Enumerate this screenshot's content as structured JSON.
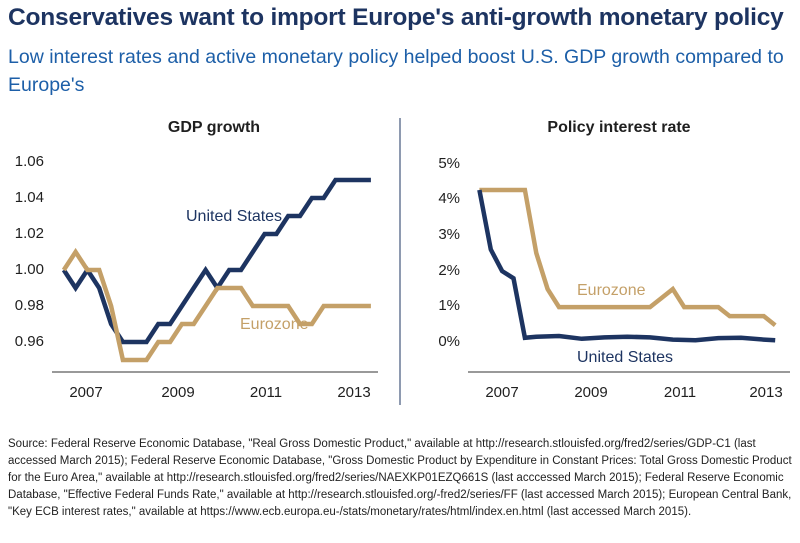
{
  "title": "Conservatives want to import Europe's anti-growth monetary policy",
  "subtitle": "Low interest rates and active monetary policy helped boost U.S. GDP growth compared to Europe's",
  "colors": {
    "us": "#1d3461",
    "eurozone": "#c4a068",
    "title": "#1d3461",
    "subtitle": "#1d5fa8"
  },
  "chart_data": [
    {
      "type": "line",
      "title": "GDP growth",
      "xlim": [
        2006.5,
        2013.4
      ],
      "ylim": [
        0.95,
        1.06
      ],
      "x_ticks": [
        2007,
        2009,
        2011,
        2013
      ],
      "x_tick_labels": [
        "2007",
        "2009",
        "2011",
        "2013"
      ],
      "y_ticks": [
        0.96,
        0.98,
        1.0,
        1.02,
        1.04,
        1.06
      ],
      "y_tick_labels": [
        "0.96",
        "0.98",
        "1.00",
        "1.02",
        "1.04",
        "1.06"
      ],
      "grid": false,
      "series": [
        {
          "name": "United States",
          "color": "#1d3461",
          "x": [
            2006.75,
            2007.0,
            2007.25,
            2007.5,
            2007.75,
            2008.0,
            2008.25,
            2008.5,
            2008.75,
            2009.0,
            2009.25,
            2009.5,
            2009.75,
            2010.0,
            2010.25,
            2010.5,
            2010.75,
            2011.0,
            2011.25,
            2011.5,
            2011.75,
            2012.0,
            2012.25,
            2012.5,
            2012.75,
            2013.0,
            2013.25
          ],
          "values": [
            1.0,
            0.99,
            1.0,
            0.99,
            0.97,
            0.96,
            0.96,
            0.96,
            0.97,
            0.97,
            0.98,
            0.99,
            1.0,
            0.99,
            1.0,
            1.0,
            1.01,
            1.02,
            1.02,
            1.03,
            1.03,
            1.04,
            1.04,
            1.05,
            1.05,
            1.05,
            1.05
          ]
        },
        {
          "name": "Eurozone",
          "color": "#c4a068",
          "x": [
            2006.75,
            2007.0,
            2007.25,
            2007.5,
            2007.75,
            2008.0,
            2008.25,
            2008.5,
            2008.75,
            2009.0,
            2009.25,
            2009.5,
            2009.75,
            2010.0,
            2010.25,
            2010.5,
            2010.75,
            2011.0,
            2011.25,
            2011.5,
            2011.75,
            2012.0,
            2012.25,
            2012.5,
            2012.75,
            2013.0,
            2013.25
          ],
          "values": [
            1.0,
            1.01,
            1.0,
            1.0,
            0.98,
            0.95,
            0.95,
            0.95,
            0.96,
            0.96,
            0.97,
            0.97,
            0.98,
            0.99,
            0.99,
            0.99,
            0.98,
            0.98,
            0.98,
            0.98,
            0.97,
            0.97,
            0.98,
            0.98,
            0.98,
            0.98,
            0.98
          ]
        }
      ],
      "annotations": [
        {
          "text": "United States",
          "series": "United States"
        },
        {
          "text": "Eurozone",
          "series": "Eurozone"
        }
      ]
    },
    {
      "type": "line",
      "title": "Policy interest rate",
      "xlim": [
        2006.5,
        2013.4
      ],
      "ylim": [
        -0.8,
        5.0
      ],
      "x_ticks": [
        2007,
        2009,
        2011,
        2013
      ],
      "x_tick_labels": [
        "2007",
        "2009",
        "2011",
        "2013"
      ],
      "y_ticks": [
        0,
        1,
        2,
        3,
        4,
        5
      ],
      "y_tick_labels": [
        "0%",
        "1%",
        "2%",
        "3%",
        "4%",
        "5%"
      ],
      "grid": false,
      "series": [
        {
          "name": "United States",
          "color": "#1d3461",
          "x": [
            2006.75,
            2007.0,
            2007.25,
            2007.5,
            2007.75,
            2008.0,
            2008.5,
            2009.0,
            2009.5,
            2010.0,
            2010.5,
            2011.0,
            2011.5,
            2012.0,
            2012.5,
            2013.0,
            2013.25
          ],
          "values": [
            4.25,
            2.6,
            2.0,
            1.8,
            0.15,
            0.18,
            0.2,
            0.12,
            0.16,
            0.18,
            0.16,
            0.1,
            0.08,
            0.14,
            0.15,
            0.1,
            0.08
          ]
        },
        {
          "name": "Eurozone",
          "color": "#c4a068",
          "x": [
            2006.75,
            2007.75,
            2008.0,
            2008.25,
            2008.5,
            2009.0,
            2010.0,
            2010.5,
            2010.75,
            2011.0,
            2011.25,
            2011.5,
            2012.0,
            2012.25,
            2012.5,
            2013.0,
            2013.25
          ],
          "values": [
            4.25,
            4.25,
            2.5,
            1.5,
            1.0,
            1.0,
            1.0,
            1.0,
            1.25,
            1.5,
            1.0,
            1.0,
            1.0,
            0.75,
            0.75,
            0.75,
            0.5
          ]
        }
      ],
      "annotations": [
        {
          "text": "Eurozone",
          "series": "Eurozone"
        },
        {
          "text": "United States",
          "series": "United States"
        }
      ]
    }
  ],
  "source": "Source: Federal Reserve Economic Database, \"Real Gross Domestic Product,\" available at http://research.stlouisfed.org/fred2/series/GDP-C1 (last accessed March 2015); Federal Reserve Economic Database, \"Gross Domestic Product by Expenditure in Constant Prices: Total Gross Domestic Product for the Euro Area,\" available at http://research.stlouisfed.org/fred2/series/NAEXKP01EZQ661S (last acccessed March 2015); Federal Reserve Economic Database, \"Effective Federal Funds Rate,\" available at http://research.stlouisfed.org/-fred2/series/FF (last accessed March 2015); European Central Bank, \"Key ECB interest rates,\" available at https://www.ecb.europa.eu-/stats/monetary/rates/html/index.en.html (last accessed March 2015)."
}
